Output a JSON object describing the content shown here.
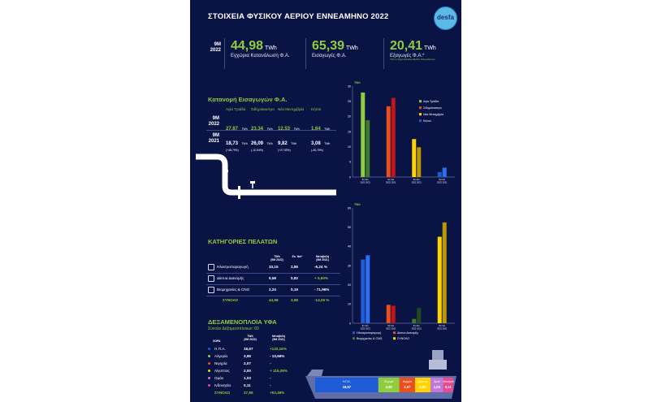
{
  "title": "ΣΤΟΙΧΕΙΑ ΦΥΣΙΚΟΥ ΑΕΡΙΟΥ ΕΝΝΕΑΜΗΝΟ 2022",
  "logo": {
    "text": "desfa",
    "icon": "desfa-logo-icon"
  },
  "kpis": {
    "year_line1": "9M",
    "year_line2": "2022",
    "items": [
      {
        "value": "44,98",
        "unit": "TWh",
        "label": "Εγχώρια Κατανάλωση Φ.Α.",
        "note": ""
      },
      {
        "value": "65,39",
        "unit": "TWh",
        "label": "Εισαγωγές Φ.Α.",
        "note": ""
      },
      {
        "value": "20,41",
        "unit": "TWh",
        "label": "Εξαγωγές Φ.Α.*",
        "note": "*από το Σημείο Εισόδου-Εξόδου Σιδηροκάστρου"
      }
    ]
  },
  "imports": {
    "title": "Κατανομή Εισαγωγών Φ.Α.",
    "points": [
      "Αγία Τριάδα",
      "Σιδηρόκαστρο",
      "Νέα Μεσημβρία",
      "Κήποι"
    ],
    "row2022": {
      "y1": "9M",
      "y2": "2022",
      "values": [
        "27,87",
        "23,34",
        "12,53",
        "1,64"
      ],
      "unit": "TWh"
    },
    "row2021": {
      "y1": "9M",
      "y2": "2021",
      "values": [
        "18,73",
        "26,09",
        "9,82",
        "3,08"
      ],
      "unit": "TWh",
      "changes": [
        "(+48,79%)",
        "(-10,54%)",
        "(+27,59%)",
        "(-46,75%)"
      ]
    }
  },
  "customers": {
    "title": "ΚΑΤΗΓΟΡΙΕΣ ΠΕΛΑΤΩΝ",
    "headers": [
      "TWh",
      "Εκ. Nm³",
      "Μεταβολή"
    ],
    "header_subs": [
      "(9M 2022)",
      "",
      "(9M 2021)"
    ],
    "rows": [
      {
        "icon": "power-plant-icon",
        "name": "Ηλεκτροπαραγωγή",
        "twh": "33,15",
        "nm3": "2,86",
        "change": "-6,24 %"
      },
      {
        "icon": "network-icon",
        "name": "Δίκτυα Διανομής",
        "twh": "9,58",
        "nm3": "0,82",
        "change": "+ 5,50%"
      },
      {
        "icon": "factory-icon",
        "name": "Βιομηχανίες & CNG",
        "twh": "2,24",
        "nm3": "0,19",
        "change": "- 71,96%"
      }
    ],
    "total": {
      "name": "ΣΥΝΟΛΟ",
      "twh": "44,98",
      "nm3": "3,88",
      "change": "-14,25 %"
    }
  },
  "lng": {
    "title": "ΔΕΞΑΜΕΝΟΠΛΟΙΑ ΥΦΑ",
    "subtitle": "Σύνολο Δεξαμενόπλοιων: 60",
    "headers": [
      "ΧΩΡΑ",
      "TWh",
      "Μεταβολή"
    ],
    "header_subs": [
      "",
      "(9M 2022)",
      "(9M 2021)"
    ],
    "rows": [
      {
        "country": "Η.Π.Α.",
        "twh": "18,67",
        "change": "+132,16%",
        "color": "#1f5bd6"
      },
      {
        "country": "Αλγερία",
        "twh": "3,95",
        "change": "- 10,66%",
        "color": "#8fcd3c"
      },
      {
        "country": "Νιγηρία",
        "twh": "2,07",
        "change": "-",
        "color": "#e94e1b"
      },
      {
        "country": "Αίγυπτος",
        "twh": "2,00",
        "change": "+ 116,39%",
        "color": "#ffd200"
      },
      {
        "country": "Ομάν",
        "twh": "1,03",
        "change": "-",
        "color": "#c07ad6"
      },
      {
        "country": "Ινδονησία",
        "twh": "0,11",
        "change": "-",
        "color": "#e64a8f"
      }
    ],
    "total": {
      "country": "ΣΥΝΟΛΟ",
      "twh": "27,85",
      "change": "+53,49%"
    }
  },
  "chart_data": [
    {
      "type": "bar",
      "ylabel": "TWh",
      "ylim": [
        0,
        30
      ],
      "yticks": [
        "0",
        "5",
        "10",
        "15",
        "20",
        "25",
        "30"
      ],
      "categories": [
        "Αγία Τριάδα",
        "Σιδηρόκαστρο",
        "Νέα Μεσημβρία",
        "Κήποι"
      ],
      "x_ticks": [
        "9m 9m",
        "2022 2021"
      ],
      "series": [
        {
          "name": "9M 2022",
          "values": [
            27.87,
            23.34,
            12.53,
            1.64
          ]
        },
        {
          "name": "9M 2021",
          "values": [
            18.73,
            26.09,
            9.82,
            3.08
          ]
        }
      ],
      "colors_2022": [
        "#8fcd3c",
        "#e94e1b",
        "#ffd200",
        "#1f5bd6"
      ],
      "colors_2021": [
        "#3d7a2e",
        "#c0151a",
        "#b89a00",
        "#2d6ef5"
      ],
      "legend": [
        "Αγία Τριάδα",
        "Σιδηρόκαστρο",
        "Νέα Μεσημβρία",
        "Κήποι"
      ],
      "legend_position": "top-right",
      "grid": false
    },
    {
      "type": "bar",
      "ylabel": "TWh",
      "ylim": [
        0,
        60
      ],
      "yticks": [
        "0",
        "10",
        "20",
        "30",
        "40",
        "50",
        "60"
      ],
      "categories": [
        "Ηλεκτροπαραγωγή",
        "Δίκτυα Διανομής",
        "Βιομηχανίες & CNG",
        "ΣΥΝΟΛΟ"
      ],
      "x_ticks": [
        "9m 9m",
        "2022 2021"
      ],
      "series": [
        {
          "name": "9M 2022",
          "values": [
            33.15,
            9.58,
            2.24,
            44.98
          ]
        },
        {
          "name": "9M 2021",
          "values": [
            35.35,
            9.08,
            7.99,
            52.45
          ]
        }
      ],
      "colors_2022": [
        "#1f5bd6",
        "#e94e1b",
        "#3d7a2e",
        "#ffd200"
      ],
      "colors_2021": [
        "#2d6ef5",
        "#c0151a",
        "#1f4a1a",
        "#b89a00"
      ],
      "legend": [
        "Ηλεκτροπαραγωγή",
        "Δίκτυα Διανομής",
        "Βιομηχανίες & CNG",
        "ΣΥΝΟΛΟ"
      ],
      "legend_position": "bottom",
      "grid": false
    },
    {
      "type": "bar",
      "orientation": "horizontal-stacked",
      "categories": [
        "Η.Π.Α.",
        "Αλγερία",
        "Νιγηρία",
        "Αίγυπτος",
        "Ομάν",
        "Ινδονησία"
      ],
      "values": [
        18.67,
        3.95,
        2.07,
        2.0,
        1.03,
        0.11
      ],
      "value_labels": [
        "18,67",
        "3,95",
        "2,07",
        "2,00",
        "1,03",
        "0,11"
      ],
      "colors": [
        "#1f5bd6",
        "#8fcd3c",
        "#e94e1b",
        "#ffd200",
        "#c07ad6",
        "#e64a8f"
      ]
    }
  ]
}
